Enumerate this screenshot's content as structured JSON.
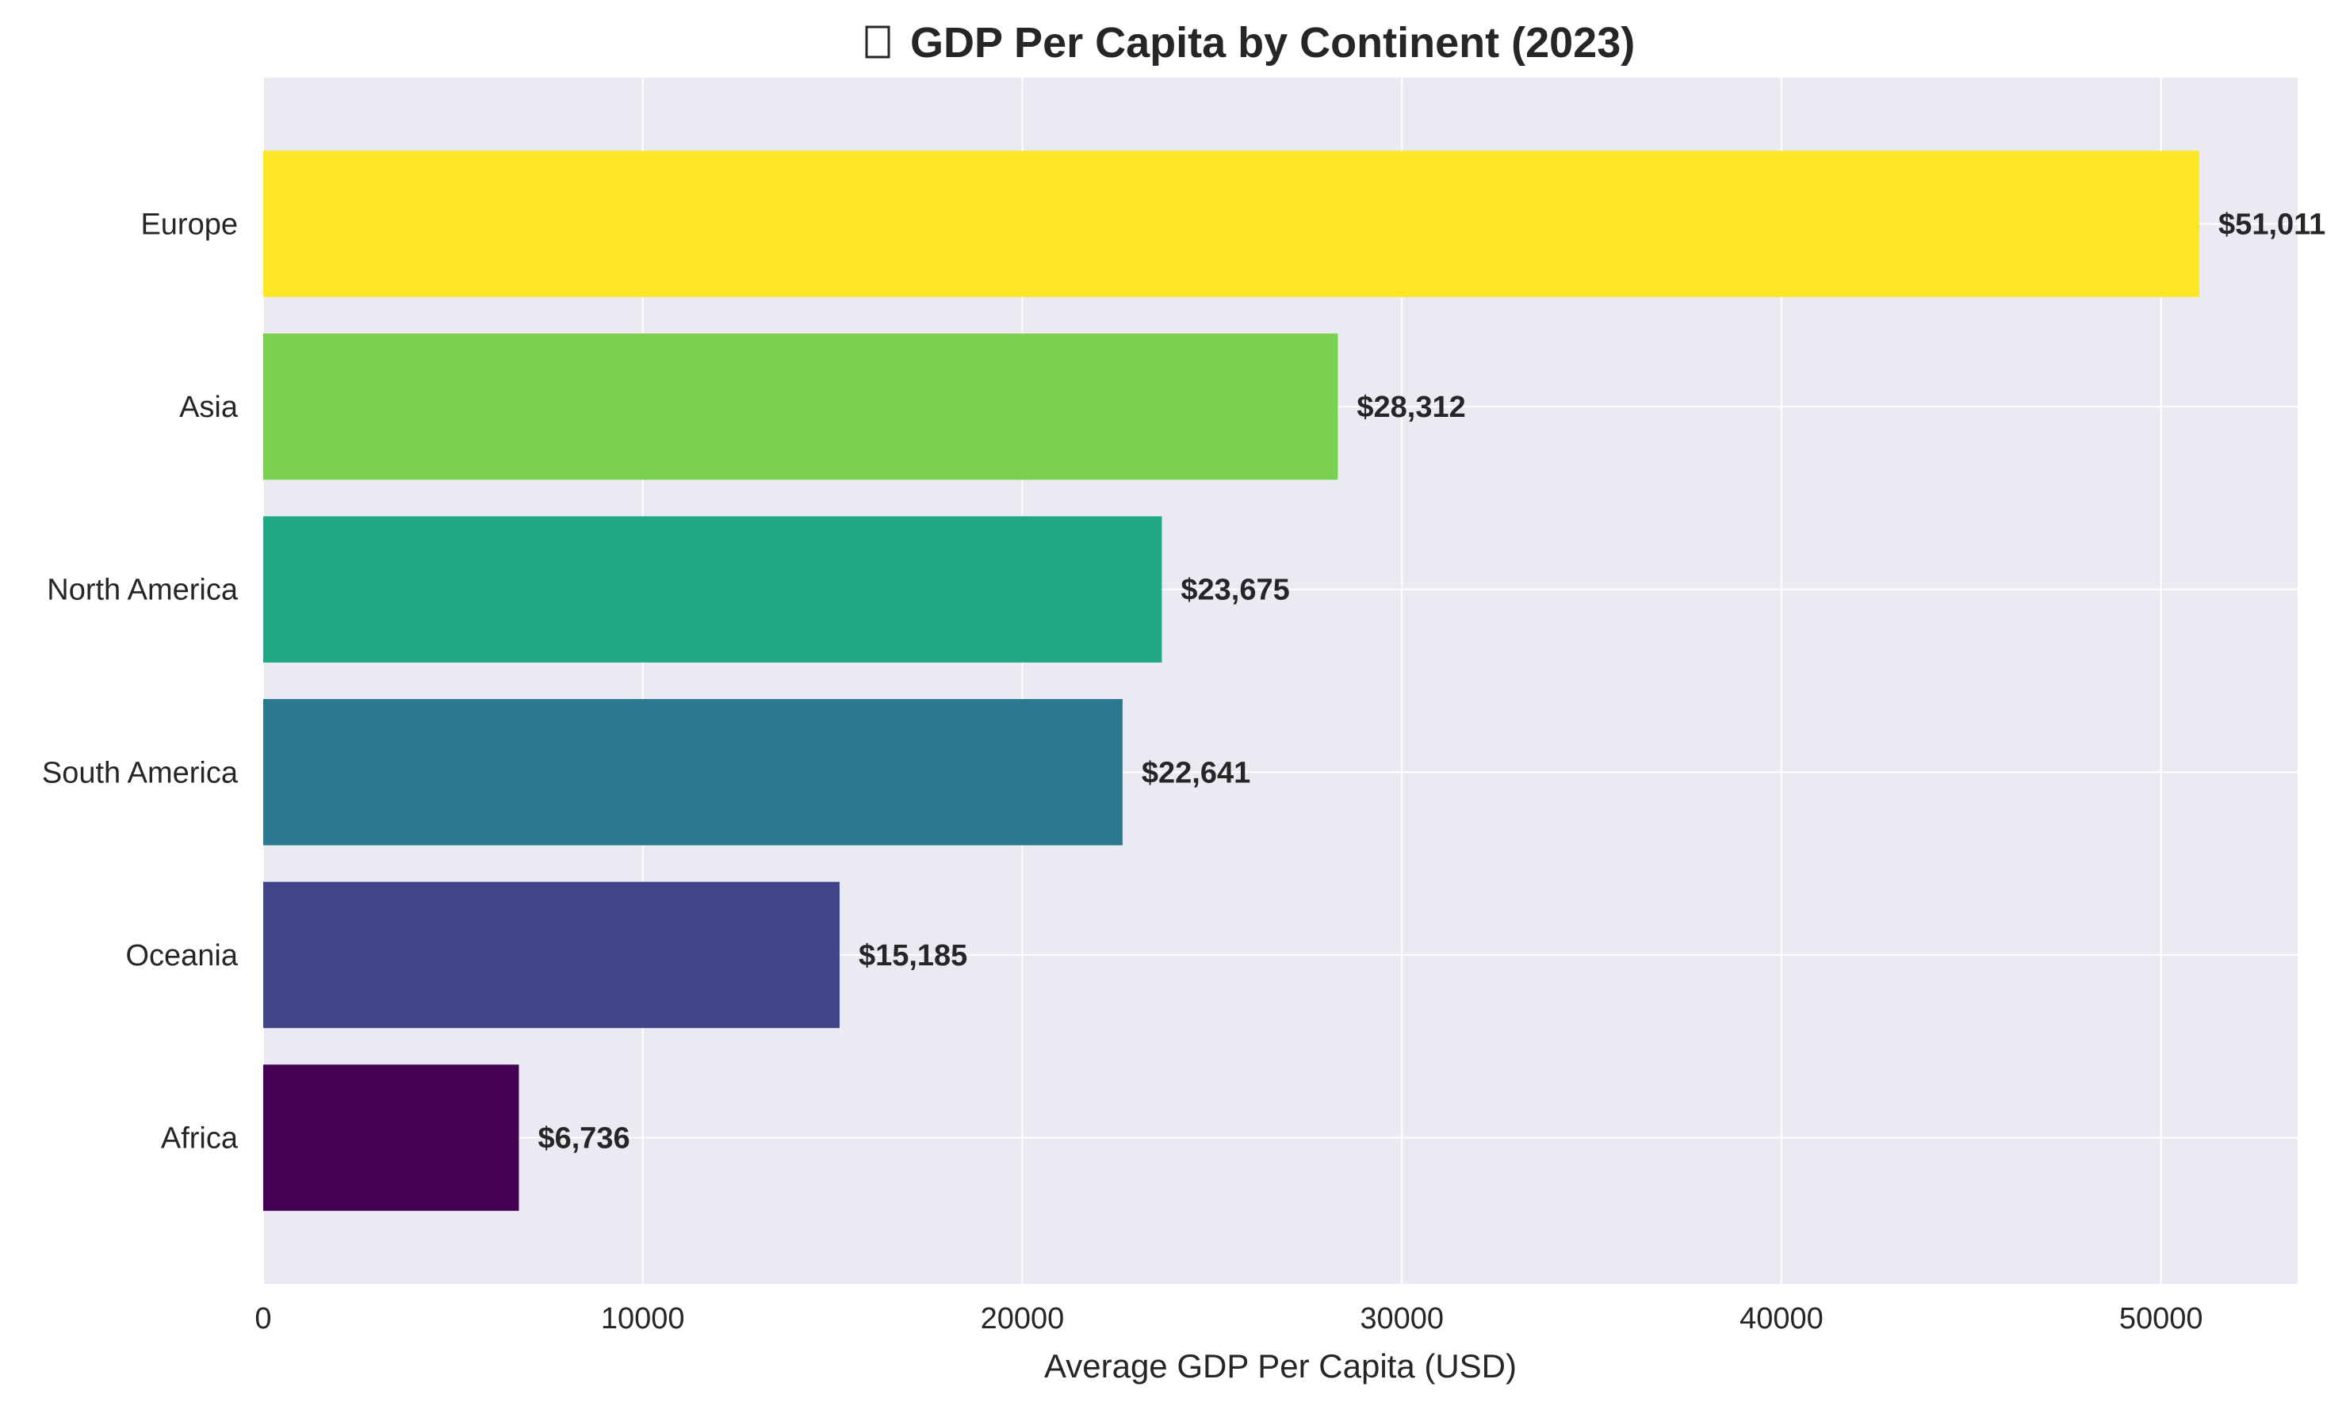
{
  "chart_data": {
    "type": "bar",
    "orientation": "horizontal",
    "title": "GDP Per Capita by Continent (2023)",
    "title_icon": "missing-glyph-icon",
    "xlabel": "Average GDP Per Capita (USD)",
    "ylabel": "",
    "categories": [
      "Europe",
      "Asia",
      "North America",
      "South America",
      "Oceania",
      "Africa"
    ],
    "values": [
      51011,
      28312,
      23675,
      22641,
      15185,
      6736
    ],
    "value_labels": [
      "$51,011",
      "$28,312",
      "$23,675",
      "$22,641",
      "$15,185",
      "$6,736"
    ],
    "colors": [
      "#fde725",
      "#7ad151",
      "#22a884",
      "#2a788e",
      "#414487",
      "#440154"
    ],
    "xlim": [
      0,
      53600
    ],
    "xticks": [
      0,
      10000,
      20000,
      30000,
      40000,
      50000
    ],
    "xtick_labels": [
      "0",
      "10000",
      "20000",
      "30000",
      "40000",
      "50000"
    ],
    "grid": true,
    "plot_background": "#eaeaf2",
    "legend": "none"
  }
}
